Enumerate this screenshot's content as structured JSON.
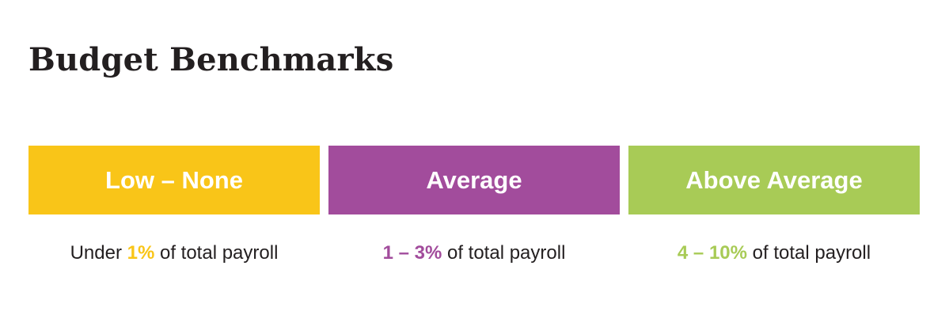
{
  "title": "Budget Benchmarks",
  "tiers": [
    {
      "label": "Low – None",
      "color": "#f9c518",
      "note": [
        {
          "text": "Under"
        },
        {
          "text": "1%",
          "accent": true
        },
        {
          "text": "of total payroll"
        }
      ]
    },
    {
      "label": "Average",
      "color": "#a24c9c",
      "note": [
        {
          "text": "1 – 3%",
          "accent": true
        },
        {
          "text": "of total payroll"
        }
      ]
    },
    {
      "label": "Above Average",
      "color": "#a8cb56",
      "note": [
        {
          "text": "4 – 10%",
          "accent": true
        },
        {
          "text": "of total payroll"
        }
      ]
    }
  ]
}
